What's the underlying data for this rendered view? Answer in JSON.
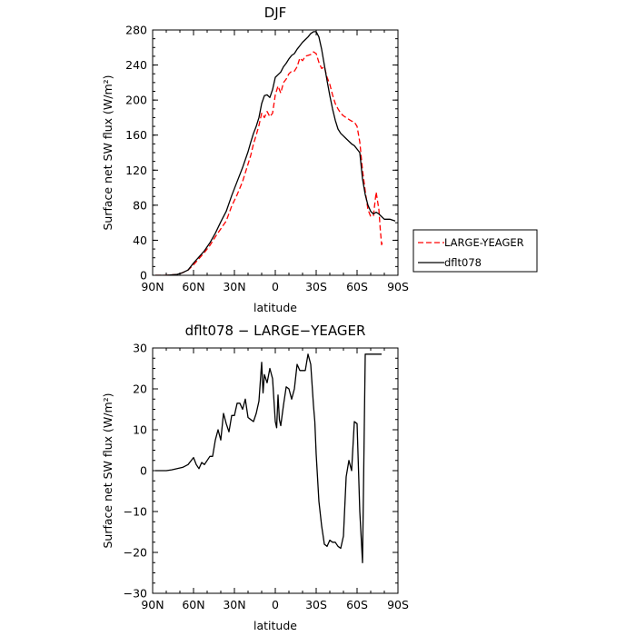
{
  "chart_data": [
    {
      "type": "line",
      "title": "DJF",
      "xlabel": "latitude",
      "ylabel": "Surface net SW flux (W/m²)",
      "x_ticks": [
        "90N",
        "60N",
        "30N",
        "0",
        "30S",
        "60S",
        "90S"
      ],
      "x_tick_values": [
        90,
        60,
        30,
        0,
        -30,
        -60,
        -90
      ],
      "xlim": [
        90,
        -90
      ],
      "y_ticks": [
        "0",
        "40",
        "80",
        "120",
        "160",
        "200",
        "240",
        "280"
      ],
      "ylim": [
        0,
        280
      ],
      "legend_position": "outside right",
      "series": [
        {
          "name": "LARGE-YEAGER",
          "style": "dashed",
          "color": "#ff0000",
          "x": [
            88,
            84,
            80,
            76,
            72,
            68,
            64,
            60,
            56,
            52,
            48,
            44,
            40,
            36,
            32,
            28,
            24,
            20,
            18,
            16,
            14,
            12,
            10,
            8,
            6,
            4,
            2,
            0,
            -2,
            -4,
            -6,
            -8,
            -10,
            -12,
            -14,
            -16,
            -18,
            -20,
            -22,
            -24,
            -26,
            -28,
            -30,
            -32,
            -34,
            -36,
            -38,
            -40,
            -42,
            -44,
            -46,
            -48,
            -50,
            -52,
            -54,
            -56,
            -58,
            -60,
            -62,
            -64,
            -66,
            -68,
            -70,
            -72,
            -74,
            -76,
            -77,
            -78,
            -79
          ],
          "y": [
            0,
            0,
            0,
            0.5,
            1,
            3,
            6,
            12,
            19,
            26,
            34,
            44,
            53,
            62,
            79,
            92,
            107,
            127,
            137,
            150,
            160,
            171,
            185,
            180,
            187,
            181,
            185,
            206,
            216,
            208,
            220,
            224,
            230,
            233,
            233,
            238,
            248,
            245,
            250,
            251,
            252,
            255,
            253,
            243,
            236,
            238,
            226,
            218,
            206,
            196,
            190,
            185,
            182,
            180,
            178,
            176,
            175,
            170,
            152,
            120,
            96,
            75,
            67,
            68,
            95,
            75,
            53,
            35,
            40
          ]
        },
        {
          "name": "dflt078",
          "style": "solid",
          "color": "#000000",
          "x": [
            88,
            84,
            80,
            76,
            72,
            68,
            64,
            60,
            56,
            52,
            48,
            44,
            40,
            36,
            32,
            28,
            24,
            20,
            18,
            16,
            14,
            12,
            10,
            8,
            6,
            4,
            2,
            0,
            -2,
            -4,
            -6,
            -8,
            -10,
            -12,
            -14,
            -16,
            -18,
            -20,
            -22,
            -24,
            -26,
            -28,
            -30,
            -32,
            -34,
            -36,
            -38,
            -40,
            -42,
            -44,
            -46,
            -48,
            -50,
            -52,
            -54,
            -56,
            -58,
            -60,
            -62,
            -64,
            -66,
            -68,
            -70,
            -72,
            -74,
            -76,
            -80,
            -84,
            -88
          ],
          "y": [
            0,
            0,
            0,
            0.5,
            1,
            3,
            6,
            14,
            21,
            28,
            37,
            48,
            61,
            73,
            91,
            107,
            123,
            141,
            152,
            162,
            170,
            180,
            196,
            205,
            206,
            203,
            212,
            226,
            229,
            232,
            238,
            242,
            247,
            251,
            253,
            258,
            262,
            266,
            269,
            272,
            276,
            278,
            278,
            272,
            258,
            240,
            222,
            205,
            190,
            177,
            167,
            162,
            159,
            156,
            153,
            150,
            148,
            144,
            140,
            110,
            92,
            80,
            73,
            70,
            72,
            70,
            64,
            64,
            62
          ]
        }
      ]
    },
    {
      "type": "line",
      "title": "dflt078 − LARGE−YEAGER",
      "xlabel": "latitude",
      "ylabel": "Surface net SW flux (W/m²)",
      "x_ticks": [
        "90N",
        "60N",
        "30N",
        "0",
        "30S",
        "60S",
        "90S"
      ],
      "x_tick_values": [
        90,
        60,
        30,
        0,
        -30,
        -60,
        -90
      ],
      "xlim": [
        90,
        -90
      ],
      "y_ticks": [
        "30",
        "20",
        "10",
        "0",
        "−10",
        "−20",
        "−30"
      ],
      "ylim": [
        -30,
        30
      ],
      "series": [
        {
          "name": "",
          "color": "#000000",
          "x": [
            88,
            84,
            80,
            76,
            72,
            68,
            64,
            60,
            58,
            56,
            54,
            52,
            50,
            48,
            46,
            44,
            42,
            40,
            38,
            36,
            34,
            32,
            30,
            28,
            26,
            24,
            22,
            20,
            18,
            16,
            14,
            12,
            10,
            9,
            8,
            6,
            4,
            2,
            0,
            -1,
            -2,
            -3,
            -4,
            -6,
            -8,
            -10,
            -12,
            -14,
            -16,
            -18,
            -20,
            -22,
            -24,
            -26,
            -28,
            -29,
            -30,
            -32,
            -34,
            -36,
            -38,
            -40,
            -42,
            -44,
            -46,
            -48,
            -50,
            -52,
            -54,
            -56,
            -58,
            -60,
            -62,
            -64,
            -66,
            -68,
            -70,
            -72,
            -74,
            -76,
            -78
          ],
          "y": [
            0,
            0,
            0,
            0.2,
            0.5,
            0.8,
            1.5,
            3.2,
            1.5,
            0.5,
            2.0,
            1.5,
            2.5,
            3.5,
            3.5,
            7.5,
            10,
            7.5,
            14,
            11.5,
            9.5,
            13.5,
            13.5,
            16.5,
            16.5,
            15,
            17.5,
            13,
            12.5,
            12,
            14,
            17,
            26.5,
            19,
            23.5,
            21.5,
            25,
            22.5,
            12,
            10.5,
            18.5,
            12.5,
            11,
            16,
            20.5,
            20,
            17.5,
            20,
            26,
            24.5,
            24.5,
            24.5,
            28.5,
            26,
            16,
            12,
            4,
            -7.5,
            -13.5,
            -18,
            -18.5,
            -17,
            -17.5,
            -17.5,
            -18.5,
            -19,
            -16,
            -1.5,
            2.5,
            0,
            12,
            11.5,
            -10,
            -22.5,
            28.5,
            28.5,
            28.5,
            28.5,
            28.5,
            28.5,
            28.5
          ]
        }
      ]
    }
  ]
}
